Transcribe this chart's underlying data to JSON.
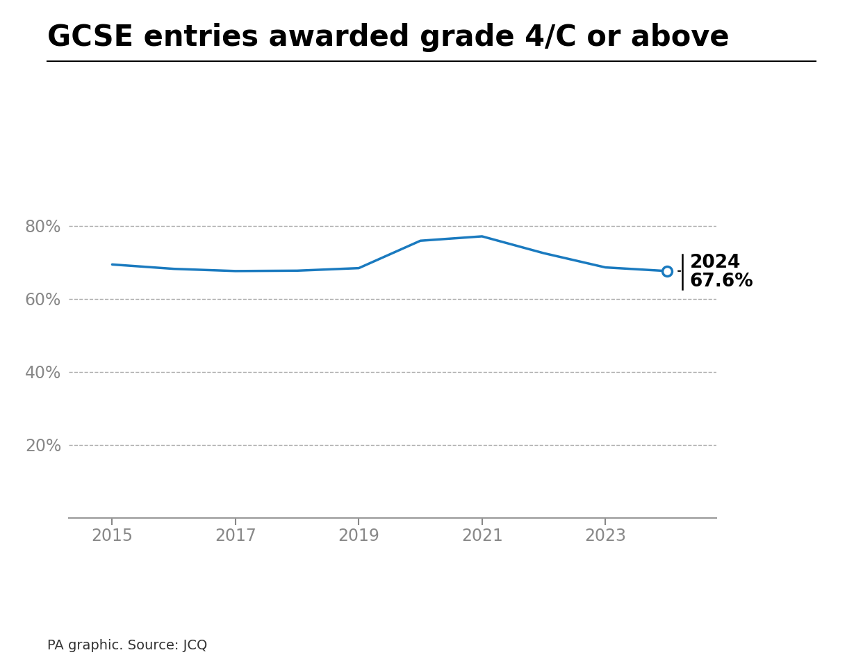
{
  "title": "GCSE entries awarded grade 4/C or above",
  "years": [
    2015,
    2016,
    2017,
    2018,
    2019,
    2020,
    2021,
    2022,
    2023,
    2024
  ],
  "values": [
    69.4,
    68.2,
    67.6,
    67.7,
    68.4,
    75.9,
    77.1,
    72.5,
    68.6,
    67.6
  ],
  "line_color": "#1a7abf",
  "annotation_year": "2024",
  "annotation_value": "67.6%",
  "source": "PA graphic. Source: JCQ",
  "yticks": [
    20,
    40,
    60,
    80
  ],
  "xticks": [
    2015,
    2017,
    2019,
    2021,
    2023
  ],
  "ylim": [
    0,
    100
  ],
  "xlim": [
    2014.3,
    2024.8
  ],
  "background_color": "#ffffff",
  "grid_color": "#aaaaaa",
  "title_fontsize": 30,
  "tick_fontsize": 17,
  "annotation_fontsize": 19,
  "source_fontsize": 14,
  "ytick_color": "#888888",
  "xtick_color": "#888888"
}
